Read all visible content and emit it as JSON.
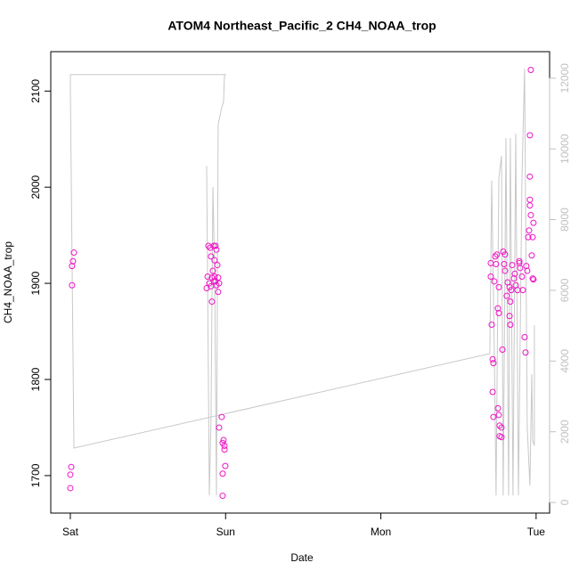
{
  "chart_data": {
    "type": "scatter",
    "title": "ATOM4 Northeast_Pacific_2 CH4_NOAA_trop",
    "x_label": "Date",
    "y_label": "CH4_NOAA_trop",
    "xlim": [
      -0.126,
      3.087
    ],
    "xticks": [
      {
        "value": 0,
        "label": "Sat"
      },
      {
        "value": 1,
        "label": "Sun"
      },
      {
        "value": 2,
        "label": "Mon"
      },
      {
        "value": 3,
        "label": "Tue"
      }
    ],
    "ylim": [
      1661,
      2141
    ],
    "yticks": [
      1700,
      1800,
      1900,
      2000,
      2100
    ],
    "y2lim": [
      -300,
      12750
    ],
    "y2ticks": [
      0,
      2000,
      4000,
      6000,
      8000,
      10000,
      12000
    ],
    "axis_color_y2": "#c0c0c0",
    "series": [
      {
        "color": "#f013c5",
        "marker": "circle",
        "x": [
          0.023,
          0.017,
          0.011,
          0.011,
          0.006,
          0,
          0,
          0.889,
          0.901,
          0.924,
          0.935,
          0.941,
          0.906,
          0.929,
          0.947,
          0.884,
          0.912,
          0.929,
          0.952,
          0.878,
          0.895,
          0.906,
          0.924,
          0.941,
          0.958,
          0.952,
          0.912,
          0.918,
          0.935,
          0.975,
          0.958,
          0.987,
          0.981,
          0.993,
          0.993,
          0.998,
          0.981,
          0.981,
          2.708,
          2.708,
          2.731,
          2.714,
          2.72,
          2.725,
          2.72,
          2.725,
          2.737,
          2.748,
          2.742,
          2.76,
          2.754,
          2.76,
          2.754,
          2.76,
          2.765,
          2.777,
          2.765,
          2.777,
          2.783,
          2.788,
          2.8,
          2.794,
          2.8,
          2.817,
          2.829,
          2.84,
          2.811,
          2.834,
          2.829,
          2.834,
          2.846,
          2.857,
          2.869,
          2.88,
          2.892,
          2.897,
          2.909,
          2.915,
          2.926,
          2.932,
          2.937,
          2.943,
          2.949,
          2.955,
          2.96,
          2.96,
          2.96,
          2.96,
          2.966,
          2.966,
          2.983,
          2.978,
          2.972,
          2.978,
          2.983,
          2.892,
          2.863
        ],
        "values": [
          1932,
          1923,
          1918,
          1898,
          1709,
          1701,
          1687,
          1939,
          1937,
          1939,
          1939,
          1935,
          1928,
          1924,
          1919,
          1907,
          1906,
          1907,
          1906,
          1895,
          1900,
          1897,
          1902,
          1898,
          1900,
          1891,
          1881,
          1913,
          1902,
          1761,
          1750,
          1737,
          1734,
          1731,
          1727,
          1710,
          1702,
          1679,
          1921,
          1907,
          1902,
          1857,
          1821,
          1817,
          1787,
          1761,
          1928,
          1930,
          1920,
          1896,
          1874,
          1869,
          1770,
          1763,
          1752,
          1750,
          1741,
          1740,
          1831,
          1933,
          1930,
          1920,
          1913,
          1901,
          1896,
          1893,
          1887,
          1881,
          1866,
          1857,
          1919,
          1905,
          1898,
          1893,
          1921,
          1916,
          1907,
          1893,
          1844,
          1828,
          1918,
          1913,
          1948,
          1955,
          1981,
          1987,
          2011,
          2054,
          2122,
          1971,
          1963,
          1948,
          1929,
          1905,
          1904,
          1923,
          1910
        ]
      },
      {
        "color": "#c8c8c8",
        "marker": "line",
        "axis": "y2",
        "x": [
          0.878,
          0.895,
          0.906,
          0.918,
          0.929,
          0.941,
          0.952,
          0.964,
          0.975,
          0.987,
          0.993,
          1.004,
          0,
          0,
          0.023,
          2.702,
          2.714,
          2.731,
          2.742,
          2.76,
          2.777,
          2.788,
          2.806,
          2.823,
          2.834,
          2.851,
          2.869,
          2.886,
          2.909,
          2.926,
          2.943,
          2.96,
          2.972,
          2.978,
          2.989,
          2.989
        ],
        "values": [
          9520,
          200,
          2370,
          8920,
          6650,
          200,
          10690,
          10940,
          11170,
          11340,
          12100,
          12100,
          12100,
          11690,
          1540,
          4210,
          9100,
          4130,
          200,
          9170,
          9800,
          200,
          10310,
          200,
          10310,
          200,
          10430,
          200,
          9170,
          12270,
          2120,
          480,
          3630,
          1740,
          1610,
          5010
        ]
      }
    ]
  }
}
